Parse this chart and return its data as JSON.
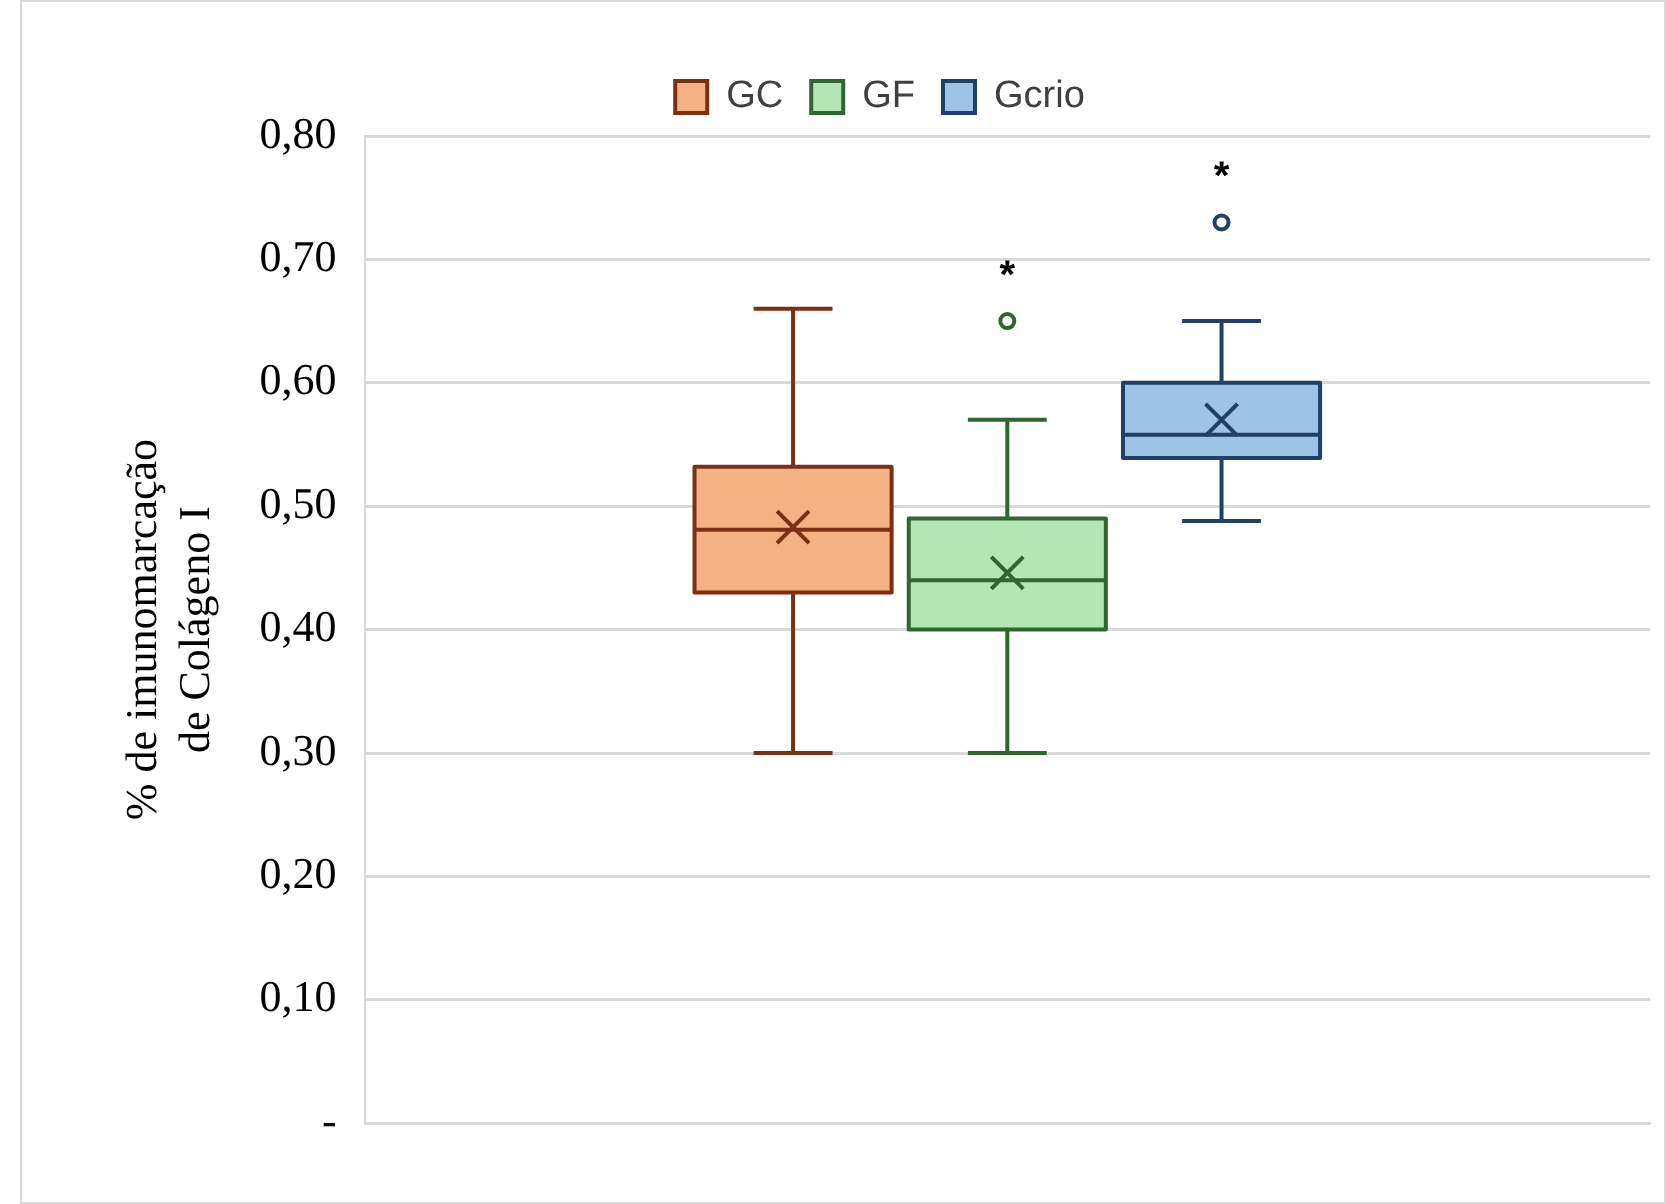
{
  "chart_data": {
    "type": "box",
    "ylabel": "% de imunomarcação\nde Colágeno I",
    "categories": [
      null
    ],
    "ylim": [
      0,
      0.8
    ],
    "yticks": [
      {
        "value": 0,
        "label": "-"
      },
      {
        "value": 0.1,
        "label": "0,10"
      },
      {
        "value": 0.2,
        "label": "0,20"
      },
      {
        "value": 0.3,
        "label": "0,30"
      },
      {
        "value": 0.4,
        "label": "0,40"
      },
      {
        "value": 0.5,
        "label": "0,50"
      },
      {
        "value": 0.6,
        "label": "0,60"
      },
      {
        "value": 0.7,
        "label": "0,70"
      },
      {
        "value": 0.8,
        "label": "0,80"
      }
    ],
    "grid": "y",
    "legend": "top",
    "series": [
      {
        "name": "GC",
        "color": "#f4b183",
        "boxes": [
          {
            "low": 0.3,
            "q1": 0.43,
            "median": 0.481,
            "q3": 0.532,
            "high": 0.66,
            "mean": 0.483
          }
        ]
      },
      {
        "name": "GF",
        "color": "#b4e5b4",
        "boxes": [
          {
            "low": 0.3,
            "q1": 0.4,
            "median": 0.44,
            "q3": 0.49,
            "high": 0.57,
            "mean": 0.446,
            "outliers": [
              0.65
            ]
          }
        ]
      },
      {
        "name": "Gcrio",
        "color": "#9dc3e6",
        "boxes": [
          {
            "low": 0.488,
            "q1": 0.539,
            "median": 0.558,
            "q3": 0.6,
            "high": 0.65,
            "mean": 0.57,
            "outliers": [
              0.73
            ]
          }
        ]
      }
    ],
    "annotations": [
      "*",
      "*"
    ]
  }
}
